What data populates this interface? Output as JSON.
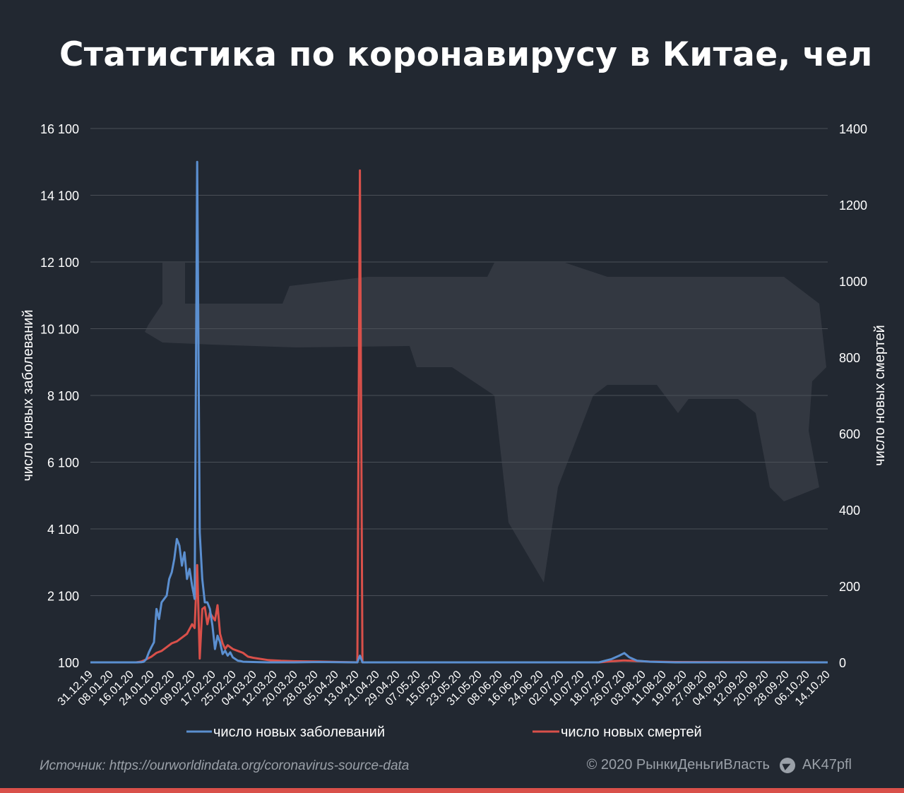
{
  "title": "Статистика по коронавирусу в Китае, чел",
  "footer": {
    "source": "Источник: https://ourworldindata.org/coronavirus-source-data",
    "copyright": "© 2020  РынкиДеньгиВласть",
    "channel": "AK47pfl"
  },
  "colors": {
    "background": "#222831",
    "cases": "#5b8fd0",
    "deaths": "#d9504a",
    "grid": "#4a4f57",
    "accent_bar": "#d9504a"
  },
  "chart_data": {
    "type": "line",
    "left_axis": {
      "label": "число новых заболеваний",
      "ylim": [
        100,
        16100
      ],
      "ticks": [
        "100",
        "2 100",
        "4 100",
        "6 100",
        "8 100",
        "10 100",
        "12 100",
        "14 100",
        "16 100"
      ]
    },
    "right_axis": {
      "label": "число новых смертей",
      "ylim": [
        0,
        1400
      ],
      "ticks": [
        "0",
        "200",
        "400",
        "600",
        "800",
        "1000",
        "1200",
        "1400"
      ]
    },
    "x_ticks": [
      "31.12.19",
      "08.01.20",
      "16.01.20",
      "24.01.20",
      "01.02.20",
      "09.02.20",
      "17.02.20",
      "25.02.20",
      "04.03.20",
      "12.03.20",
      "20.03.20",
      "28.03.20",
      "05.04.20",
      "13.04.20",
      "21.04.20",
      "29.04.20",
      "07.05.20",
      "15.05.20",
      "23.05.20",
      "31.05.20",
      "08.06.20",
      "16.06.20",
      "24.06.20",
      "02.07.20",
      "10.07.20",
      "18.07.20",
      "26.07.20",
      "03.08.20",
      "11.08.20",
      "19.08.20",
      "27.08.20",
      "04.09.20",
      "12.09.20",
      "20.09.20",
      "28.09.20",
      "06.10.20",
      "14.10.20"
    ],
    "grid": true,
    "legend_position": "bottom",
    "series": [
      {
        "name": "число новых заболеваний",
        "axis": "left",
        "points": [
          [
            0,
            100
          ],
          [
            18,
            100
          ],
          [
            20,
            105
          ],
          [
            21,
            120
          ],
          [
            22,
            200
          ],
          [
            23,
            400
          ],
          [
            24,
            560
          ],
          [
            25,
            700
          ],
          [
            26,
            1700
          ],
          [
            27,
            1400
          ],
          [
            28,
            1900
          ],
          [
            29,
            2000
          ],
          [
            30,
            2100
          ],
          [
            31,
            2600
          ],
          [
            32,
            2800
          ],
          [
            33,
            3200
          ],
          [
            34,
            3800
          ],
          [
            35,
            3600
          ],
          [
            36,
            3000
          ],
          [
            37,
            3400
          ],
          [
            38,
            2600
          ],
          [
            39,
            2900
          ],
          [
            40,
            2400
          ],
          [
            41,
            2000
          ],
          [
            42,
            15100
          ],
          [
            43,
            4000
          ],
          [
            44,
            2600
          ],
          [
            45,
            1900
          ],
          [
            46,
            1900
          ],
          [
            47,
            1700
          ],
          [
            48,
            1200
          ],
          [
            49,
            500
          ],
          [
            50,
            900
          ],
          [
            51,
            700
          ],
          [
            52,
            350
          ],
          [
            53,
            450
          ],
          [
            54,
            300
          ],
          [
            55,
            400
          ],
          [
            56,
            250
          ],
          [
            57,
            200
          ],
          [
            58,
            150
          ],
          [
            59,
            140
          ],
          [
            60,
            120
          ],
          [
            64,
            110
          ],
          [
            70,
            100
          ],
          [
            80,
            100
          ],
          [
            90,
            110
          ],
          [
            105,
            100
          ],
          [
            106,
            300
          ],
          [
            107,
            100
          ],
          [
            120,
            100
          ],
          [
            200,
            100
          ],
          [
            205,
            200
          ],
          [
            208,
            300
          ],
          [
            210,
            380
          ],
          [
            212,
            250
          ],
          [
            215,
            150
          ],
          [
            220,
            120
          ],
          [
            230,
            100
          ],
          [
            290,
            100
          ]
        ]
      },
      {
        "name": "число новых смертей",
        "axis": "right",
        "points": [
          [
            0,
            0
          ],
          [
            18,
            0
          ],
          [
            20,
            2
          ],
          [
            22,
            8
          ],
          [
            24,
            15
          ],
          [
            26,
            25
          ],
          [
            28,
            30
          ],
          [
            30,
            40
          ],
          [
            32,
            50
          ],
          [
            34,
            55
          ],
          [
            36,
            65
          ],
          [
            38,
            75
          ],
          [
            40,
            100
          ],
          [
            41,
            90
          ],
          [
            42,
            255
          ],
          [
            43,
            10
          ],
          [
            44,
            140
          ],
          [
            45,
            145
          ],
          [
            46,
            100
          ],
          [
            47,
            130
          ],
          [
            48,
            120
          ],
          [
            49,
            110
          ],
          [
            50,
            150
          ],
          [
            51,
            75
          ],
          [
            52,
            50
          ],
          [
            53,
            35
          ],
          [
            54,
            45
          ],
          [
            55,
            40
          ],
          [
            56,
            35
          ],
          [
            58,
            30
          ],
          [
            60,
            25
          ],
          [
            62,
            15
          ],
          [
            64,
            12
          ],
          [
            66,
            10
          ],
          [
            70,
            6
          ],
          [
            75,
            4
          ],
          [
            80,
            3
          ],
          [
            90,
            2
          ],
          [
            105,
            0
          ],
          [
            106,
            1290
          ],
          [
            107,
            0
          ],
          [
            120,
            0
          ],
          [
            200,
            0
          ],
          [
            205,
            3
          ],
          [
            210,
            5
          ],
          [
            220,
            2
          ],
          [
            230,
            1
          ],
          [
            290,
            0
          ]
        ]
      }
    ]
  }
}
